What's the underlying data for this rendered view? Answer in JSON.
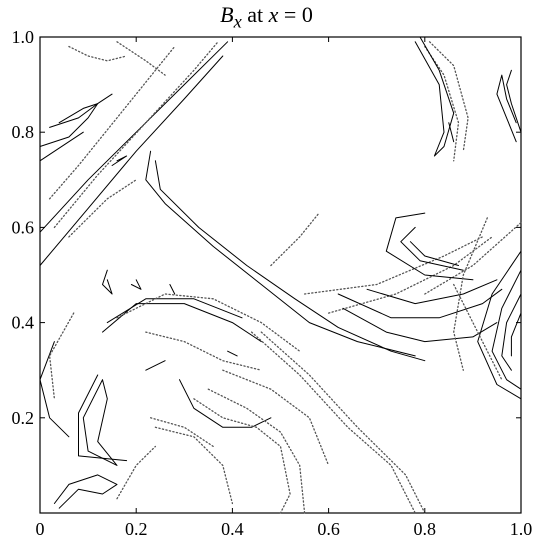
{
  "chart_data": {
    "type": "contour",
    "title": {
      "var": "B",
      "sub": "x",
      "middle": " at ",
      "cond_var": "x",
      "cond_rest": " = 0"
    },
    "xlabel": "",
    "ylabel": "",
    "xlim": [
      0,
      1
    ],
    "ylim": [
      0,
      1
    ],
    "xticks": [
      0,
      0.2,
      0.4,
      0.6,
      0.8,
      1.0
    ],
    "xtick_labels": [
      "0",
      "0.2",
      "0.4",
      "0.6",
      "0.8",
      "1.0"
    ],
    "yticks": [
      0.2,
      0.4,
      0.6,
      0.8,
      1.0
    ],
    "ytick_labels": [
      "0.2",
      "0.4",
      "0.6",
      "0.8",
      "1.0"
    ],
    "grid": false,
    "legend": "none",
    "line_color": "#000000",
    "dotted_color": "#555555",
    "contours": [
      {
        "style": "solid",
        "points": [
          [
            0.0,
            0.59
          ],
          [
            0.1,
            0.7
          ],
          [
            0.2,
            0.8
          ],
          [
            0.3,
            0.9
          ],
          [
            0.39,
            0.99
          ]
        ]
      },
      {
        "style": "solid",
        "points": [
          [
            0.0,
            0.52
          ],
          [
            0.1,
            0.64
          ],
          [
            0.2,
            0.76
          ],
          [
            0.3,
            0.87
          ],
          [
            0.38,
            0.96
          ]
        ]
      },
      {
        "style": "dotted",
        "points": [
          [
            0.03,
            0.6
          ],
          [
            0.12,
            0.71
          ],
          [
            0.22,
            0.82
          ],
          [
            0.32,
            0.93
          ],
          [
            0.37,
            0.99
          ]
        ]
      },
      {
        "style": "dotted",
        "points": [
          [
            0.06,
            0.58
          ],
          [
            0.14,
            0.66
          ],
          [
            0.2,
            0.7
          ]
        ]
      },
      {
        "style": "dotted",
        "points": [
          [
            0.02,
            0.66
          ],
          [
            0.08,
            0.73
          ],
          [
            0.16,
            0.83
          ],
          [
            0.24,
            0.93
          ],
          [
            0.28,
            0.98
          ]
        ]
      },
      {
        "style": "solid",
        "points": [
          [
            0.23,
            0.76
          ],
          [
            0.22,
            0.7
          ],
          [
            0.26,
            0.65
          ],
          [
            0.36,
            0.56
          ],
          [
            0.46,
            0.48
          ],
          [
            0.56,
            0.4
          ],
          [
            0.66,
            0.36
          ],
          [
            0.78,
            0.33
          ]
        ]
      },
      {
        "style": "solid",
        "points": [
          [
            0.24,
            0.74
          ],
          [
            0.25,
            0.68
          ],
          [
            0.33,
            0.6
          ],
          [
            0.43,
            0.52
          ],
          [
            0.53,
            0.45
          ],
          [
            0.62,
            0.39
          ],
          [
            0.73,
            0.34
          ],
          [
            0.8,
            0.32
          ]
        ]
      },
      {
        "style": "dotted",
        "points": [
          [
            0.55,
            0.46
          ],
          [
            0.7,
            0.48
          ],
          [
            0.84,
            0.54
          ],
          [
            0.92,
            0.58
          ]
        ]
      },
      {
        "style": "dotted",
        "points": [
          [
            0.6,
            0.42
          ],
          [
            0.74,
            0.46
          ],
          [
            0.86,
            0.52
          ],
          [
            0.94,
            0.58
          ]
        ]
      },
      {
        "style": "dotted",
        "points": [
          [
            0.8,
            0.46
          ],
          [
            0.9,
            0.52
          ],
          [
            1.0,
            0.61
          ]
        ]
      },
      {
        "style": "solid",
        "points": [
          [
            0.9,
            0.49
          ],
          [
            0.8,
            0.5
          ],
          [
            0.72,
            0.55
          ],
          [
            0.74,
            0.62
          ],
          [
            0.8,
            0.63
          ]
        ]
      },
      {
        "style": "solid",
        "points": [
          [
            0.88,
            0.51
          ],
          [
            0.79,
            0.53
          ],
          [
            0.75,
            0.57
          ],
          [
            0.78,
            0.6
          ]
        ]
      },
      {
        "style": "solid",
        "points": [
          [
            0.87,
            0.52
          ],
          [
            0.8,
            0.54
          ],
          [
            0.77,
            0.57
          ]
        ]
      },
      {
        "style": "solid",
        "points": [
          [
            0.63,
            0.43
          ],
          [
            0.72,
            0.38
          ],
          [
            0.8,
            0.36
          ],
          [
            0.9,
            0.37
          ],
          [
            0.95,
            0.4
          ]
        ]
      },
      {
        "style": "solid",
        "points": [
          [
            0.62,
            0.46
          ],
          [
            0.73,
            0.41
          ],
          [
            0.83,
            0.41
          ],
          [
            0.92,
            0.44
          ],
          [
            0.96,
            0.47
          ]
        ]
      },
      {
        "style": "solid",
        "points": [
          [
            0.68,
            0.47
          ],
          [
            0.78,
            0.44
          ],
          [
            0.88,
            0.46
          ],
          [
            0.95,
            0.49
          ]
        ]
      },
      {
        "style": "solid",
        "points": [
          [
            1.0,
            0.55
          ],
          [
            0.94,
            0.46
          ],
          [
            0.91,
            0.36
          ],
          [
            0.95,
            0.27
          ],
          [
            1.0,
            0.24
          ]
        ]
      },
      {
        "style": "solid",
        "points": [
          [
            1.0,
            0.51
          ],
          [
            0.96,
            0.43
          ],
          [
            0.94,
            0.34
          ],
          [
            0.97,
            0.28
          ],
          [
            1.0,
            0.26
          ]
        ]
      },
      {
        "style": "solid",
        "points": [
          [
            1.0,
            0.46
          ],
          [
            0.97,
            0.4
          ],
          [
            0.96,
            0.33
          ],
          [
            0.98,
            0.3
          ]
        ]
      },
      {
        "style": "solid",
        "points": [
          [
            1.0,
            0.42
          ],
          [
            0.98,
            0.37
          ],
          [
            0.98,
            0.33
          ]
        ]
      },
      {
        "style": "dotted",
        "points": [
          [
            0.93,
            0.62
          ],
          [
            0.88,
            0.5
          ],
          [
            0.86,
            0.38
          ],
          [
            0.88,
            0.3
          ]
        ]
      },
      {
        "style": "solid",
        "points": [
          [
            0.13,
            0.38
          ],
          [
            0.2,
            0.44
          ],
          [
            0.3,
            0.44
          ],
          [
            0.4,
            0.4
          ],
          [
            0.46,
            0.36
          ]
        ]
      },
      {
        "style": "solid",
        "points": [
          [
            0.14,
            0.4
          ],
          [
            0.22,
            0.45
          ],
          [
            0.32,
            0.45
          ],
          [
            0.42,
            0.41
          ]
        ]
      },
      {
        "style": "dotted",
        "points": [
          [
            0.16,
            0.41
          ],
          [
            0.26,
            0.46
          ],
          [
            0.36,
            0.45
          ],
          [
            0.46,
            0.4
          ],
          [
            0.54,
            0.34
          ]
        ]
      },
      {
        "style": "solid",
        "points": [
          [
            0.03,
            0.36
          ],
          [
            0.0,
            0.28
          ],
          [
            0.02,
            0.2
          ],
          [
            0.06,
            0.16
          ]
        ]
      },
      {
        "style": "dotted",
        "points": [
          [
            0.07,
            0.42
          ],
          [
            0.02,
            0.33
          ],
          [
            0.03,
            0.24
          ]
        ]
      },
      {
        "style": "solid",
        "points": [
          [
            0.13,
            0.28
          ],
          [
            0.09,
            0.2
          ],
          [
            0.1,
            0.13
          ],
          [
            0.16,
            0.1
          ],
          [
            0.12,
            0.15
          ],
          [
            0.14,
            0.24
          ],
          [
            0.13,
            0.28
          ]
        ]
      },
      {
        "style": "solid",
        "points": [
          [
            0.12,
            0.29
          ],
          [
            0.08,
            0.21
          ],
          [
            0.08,
            0.12
          ],
          [
            0.18,
            0.11
          ]
        ]
      },
      {
        "style": "solid",
        "points": [
          [
            0.03,
            0.02
          ],
          [
            0.06,
            0.06
          ],
          [
            0.12,
            0.08
          ],
          [
            0.16,
            0.06
          ],
          [
            0.13,
            0.04
          ],
          [
            0.08,
            0.05
          ],
          [
            0.04,
            0.01
          ]
        ]
      },
      {
        "style": "dotted",
        "points": [
          [
            0.16,
            0.03
          ],
          [
            0.2,
            0.1
          ],
          [
            0.24,
            0.14
          ]
        ]
      },
      {
        "style": "solid",
        "points": [
          [
            0.29,
            0.28
          ],
          [
            0.32,
            0.22
          ],
          [
            0.38,
            0.18
          ],
          [
            0.44,
            0.18
          ],
          [
            0.48,
            0.2
          ]
        ]
      },
      {
        "style": "dotted",
        "points": [
          [
            0.32,
            0.24
          ],
          [
            0.38,
            0.2
          ],
          [
            0.45,
            0.18
          ],
          [
            0.5,
            0.14
          ],
          [
            0.52,
            0.04
          ],
          [
            0.5,
            0.0
          ]
        ]
      },
      {
        "style": "dotted",
        "points": [
          [
            0.35,
            0.26
          ],
          [
            0.43,
            0.22
          ],
          [
            0.5,
            0.17
          ],
          [
            0.54,
            0.1
          ],
          [
            0.55,
            0.0
          ]
        ]
      },
      {
        "style": "dotted",
        "points": [
          [
            0.38,
            0.3
          ],
          [
            0.48,
            0.26
          ],
          [
            0.56,
            0.2
          ],
          [
            0.6,
            0.1
          ]
        ]
      },
      {
        "style": "dotted",
        "points": [
          [
            0.24,
            0.18
          ],
          [
            0.32,
            0.16
          ],
          [
            0.38,
            0.1
          ],
          [
            0.4,
            0.02
          ]
        ]
      },
      {
        "style": "dotted",
        "points": [
          [
            0.23,
            0.2
          ],
          [
            0.3,
            0.18
          ],
          [
            0.36,
            0.14
          ]
        ]
      },
      {
        "style": "dotted",
        "points": [
          [
            0.44,
            0.38
          ],
          [
            0.54,
            0.29
          ],
          [
            0.64,
            0.18
          ],
          [
            0.73,
            0.1
          ],
          [
            0.78,
            0.0
          ]
        ]
      },
      {
        "style": "dotted",
        "points": [
          [
            0.46,
            0.38
          ],
          [
            0.56,
            0.29
          ],
          [
            0.66,
            0.18
          ],
          [
            0.76,
            0.08
          ],
          [
            0.8,
            0.0
          ]
        ]
      },
      {
        "style": "dotted",
        "points": [
          [
            0.22,
            0.38
          ],
          [
            0.3,
            0.36
          ],
          [
            0.38,
            0.32
          ],
          [
            0.46,
            0.3
          ]
        ]
      },
      {
        "style": "dotted",
        "points": [
          [
            0.8,
            0.98
          ],
          [
            0.84,
            0.92
          ],
          [
            0.87,
            0.82
          ],
          [
            0.86,
            0.74
          ]
        ]
      },
      {
        "style": "dotted",
        "points": [
          [
            0.81,
            0.99
          ],
          [
            0.86,
            0.94
          ],
          [
            0.89,
            0.83
          ],
          [
            0.88,
            0.76
          ]
        ]
      },
      {
        "style": "solid",
        "points": [
          [
            0.79,
            1.0
          ],
          [
            0.83,
            0.93
          ],
          [
            0.86,
            0.84
          ],
          [
            0.84,
            0.77
          ],
          [
            0.82,
            0.75
          ],
          [
            0.84,
            0.8
          ],
          [
            0.83,
            0.9
          ],
          [
            0.78,
            0.99
          ]
        ]
      },
      {
        "style": "solid",
        "points": [
          [
            0.99,
            0.78
          ],
          [
            0.97,
            0.83
          ],
          [
            0.95,
            0.88
          ],
          [
            0.96,
            0.92
          ],
          [
            0.97,
            0.87
          ],
          [
            0.99,
            0.82
          ]
        ]
      },
      {
        "style": "solid",
        "points": [
          [
            1.0,
            0.8
          ],
          [
            0.98,
            0.86
          ],
          [
            0.97,
            0.9
          ],
          [
            0.98,
            0.93
          ]
        ]
      },
      {
        "style": "solid",
        "points": [
          [
            0.86,
            0.78
          ],
          [
            0.85,
            0.82
          ]
        ]
      },
      {
        "style": "solid",
        "points": [
          [
            0.02,
            0.81
          ],
          [
            0.08,
            0.83
          ],
          [
            0.12,
            0.86
          ],
          [
            0.09,
            0.85
          ],
          [
            0.04,
            0.82
          ]
        ]
      },
      {
        "style": "solid",
        "points": [
          [
            0.0,
            0.77
          ],
          [
            0.06,
            0.79
          ],
          [
            0.1,
            0.83
          ],
          [
            0.12,
            0.86
          ],
          [
            0.15,
            0.88
          ]
        ]
      },
      {
        "style": "solid",
        "points": [
          [
            0.0,
            0.74
          ],
          [
            0.06,
            0.78
          ],
          [
            0.09,
            0.8
          ]
        ]
      },
      {
        "style": "dotted",
        "points": [
          [
            0.06,
            0.98
          ],
          [
            0.1,
            0.96
          ],
          [
            0.14,
            0.95
          ],
          [
            0.18,
            0.96
          ]
        ]
      },
      {
        "style": "dotted",
        "points": [
          [
            0.16,
            0.99
          ],
          [
            0.22,
            0.95
          ],
          [
            0.26,
            0.92
          ]
        ]
      },
      {
        "style": "solid",
        "points": [
          [
            0.15,
            0.73
          ],
          [
            0.18,
            0.75
          ],
          [
            0.16,
            0.74
          ]
        ]
      },
      {
        "style": "solid",
        "points": [
          [
            0.14,
            0.51
          ],
          [
            0.13,
            0.48
          ],
          [
            0.15,
            0.46
          ],
          [
            0.14,
            0.49
          ]
        ]
      },
      {
        "style": "solid",
        "points": [
          [
            0.19,
            0.48
          ],
          [
            0.21,
            0.47
          ],
          [
            0.2,
            0.49
          ]
        ]
      },
      {
        "style": "solid",
        "points": [
          [
            0.27,
            0.48
          ],
          [
            0.28,
            0.46
          ]
        ]
      },
      {
        "style": "solid",
        "points": [
          [
            0.22,
            0.3
          ],
          [
            0.26,
            0.32
          ]
        ]
      },
      {
        "style": "solid",
        "points": [
          [
            0.39,
            0.34
          ],
          [
            0.41,
            0.33
          ]
        ]
      },
      {
        "style": "dotted",
        "points": [
          [
            0.48,
            0.52
          ],
          [
            0.54,
            0.58
          ],
          [
            0.58,
            0.63
          ]
        ]
      },
      {
        "style": "dotted",
        "points": [
          [
            0.86,
            0.48
          ],
          [
            0.92,
            0.36
          ],
          [
            0.96,
            0.28
          ]
        ]
      }
    ]
  }
}
